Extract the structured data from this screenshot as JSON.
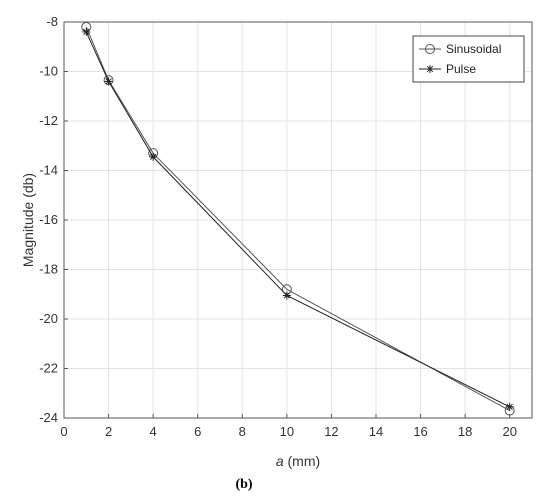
{
  "chart_data": {
    "type": "line",
    "xlabel_var": "a",
    "xlabel_unit": " (mm)",
    "ylabel": "Magnitude (db)",
    "caption": "(b)",
    "xlim": [
      0,
      21
    ],
    "ylim": [
      -24,
      -8
    ],
    "xticks": [
      0,
      2,
      4,
      6,
      8,
      10,
      12,
      14,
      16,
      18,
      20
    ],
    "yticks": [
      -24,
      -22,
      -20,
      -18,
      -16,
      -14,
      -12,
      -10,
      -8
    ],
    "grid": true,
    "legend_position": "top-right",
    "series": [
      {
        "name": "Sinusoidal",
        "marker": "circle",
        "color": "#555555",
        "x": [
          1,
          2,
          4,
          10,
          20
        ],
        "y": [
          -8.2,
          -10.35,
          -13.3,
          -18.8,
          -23.7
        ]
      },
      {
        "name": "Pulse",
        "marker": "asterisk",
        "color": "#222222",
        "x": [
          1,
          2,
          4,
          10,
          20
        ],
        "y": [
          -8.4,
          -10.4,
          -13.45,
          -19.05,
          -23.55
        ]
      }
    ]
  }
}
